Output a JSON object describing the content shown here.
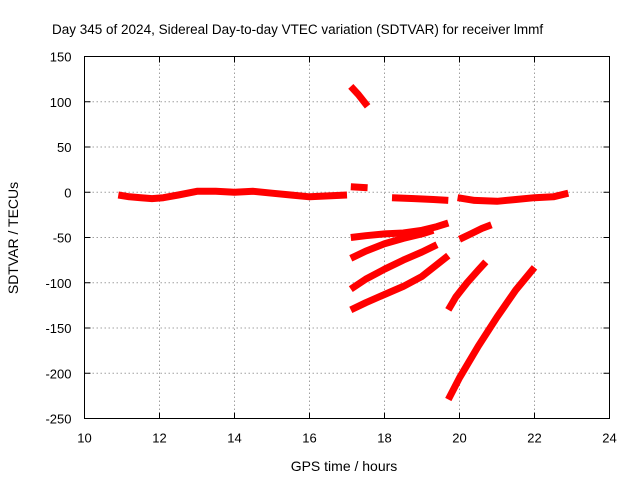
{
  "chart_data": {
    "type": "line",
    "title": "Day 345 of 2024, Sidereal Day-to-day VTEC variation (SDTVAR) for receiver lmmf",
    "xlabel": "GPS time / hours",
    "ylabel": "SDTVAR / TECUs",
    "xlim": [
      10,
      24
    ],
    "ylim": [
      -250,
      150
    ],
    "xticks": [
      10,
      12,
      14,
      16,
      18,
      20,
      22,
      24
    ],
    "yticks": [
      -250,
      -200,
      -150,
      -100,
      -50,
      0,
      50,
      100,
      150
    ],
    "grid": true,
    "legend": false,
    "color": "#ff0000",
    "series": [
      {
        "name": "s1",
        "points": [
          [
            10.9,
            -3
          ],
          [
            11.2,
            -5
          ],
          [
            11.5,
            -6
          ],
          [
            11.8,
            -7
          ],
          [
            12.1,
            -6
          ],
          [
            12.5,
            -3
          ],
          [
            13.0,
            1
          ],
          [
            13.5,
            1
          ],
          [
            14.0,
            0
          ],
          [
            14.5,
            1
          ],
          [
            15.0,
            -1
          ],
          [
            15.5,
            -3
          ],
          [
            16.0,
            -5
          ],
          [
            16.5,
            -4
          ],
          [
            17.0,
            -3
          ]
        ]
      },
      {
        "name": "s2",
        "points": [
          [
            17.1,
            117
          ],
          [
            17.3,
            108
          ],
          [
            17.55,
            95
          ]
        ]
      },
      {
        "name": "s3",
        "points": [
          [
            17.1,
            6
          ],
          [
            17.55,
            5
          ]
        ]
      },
      {
        "name": "s4",
        "points": [
          [
            18.2,
            -6
          ],
          [
            18.8,
            -7
          ],
          [
            19.3,
            -8
          ],
          [
            19.7,
            -9
          ]
        ]
      },
      {
        "name": "s5",
        "points": [
          [
            19.95,
            -6
          ],
          [
            20.4,
            -9
          ],
          [
            21.0,
            -10
          ],
          [
            21.5,
            -8
          ],
          [
            22.0,
            -6
          ],
          [
            22.5,
            -5
          ],
          [
            22.9,
            -1
          ]
        ]
      },
      {
        "name": "s6",
        "points": [
          [
            17.1,
            -50
          ],
          [
            17.5,
            -48
          ],
          [
            18.0,
            -46
          ],
          [
            18.5,
            -45
          ],
          [
            19.0,
            -42
          ],
          [
            19.4,
            -38
          ],
          [
            19.7,
            -34
          ]
        ]
      },
      {
        "name": "s7",
        "points": [
          [
            17.1,
            -73
          ],
          [
            17.5,
            -65
          ],
          [
            18.0,
            -57
          ],
          [
            18.5,
            -51
          ],
          [
            19.0,
            -46
          ],
          [
            19.3,
            -42
          ]
        ]
      },
      {
        "name": "s8",
        "points": [
          [
            17.1,
            -107
          ],
          [
            17.5,
            -96
          ],
          [
            18.0,
            -85
          ],
          [
            18.5,
            -75
          ],
          [
            19.0,
            -66
          ],
          [
            19.4,
            -58
          ]
        ]
      },
      {
        "name": "s9",
        "points": [
          [
            17.1,
            -130
          ],
          [
            17.5,
            -122
          ],
          [
            18.0,
            -113
          ],
          [
            18.5,
            -104
          ],
          [
            19.0,
            -93
          ],
          [
            19.7,
            -70
          ]
        ]
      },
      {
        "name": "s10",
        "points": [
          [
            19.7,
            -130
          ],
          [
            19.9,
            -116
          ],
          [
            20.2,
            -100
          ],
          [
            20.5,
            -86
          ],
          [
            20.7,
            -77
          ]
        ]
      },
      {
        "name": "s11",
        "points": [
          [
            20.0,
            -52
          ],
          [
            20.3,
            -46
          ],
          [
            20.6,
            -40
          ],
          [
            20.85,
            -36
          ]
        ]
      },
      {
        "name": "s12",
        "points": [
          [
            19.7,
            -229
          ],
          [
            20.0,
            -205
          ],
          [
            20.5,
            -170
          ],
          [
            21.0,
            -138
          ],
          [
            21.5,
            -108
          ],
          [
            22.0,
            -83
          ]
        ]
      }
    ]
  }
}
